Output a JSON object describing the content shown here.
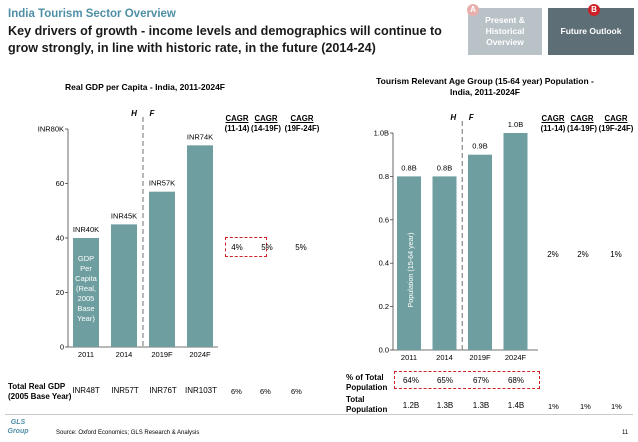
{
  "header": {
    "kicker": "India Tourism Sector Overview",
    "headline": "Key drivers of growth - income levels and demographics will continue to grow strongly, in line with historic rate, in the future (2014-24)"
  },
  "tabs": [
    {
      "marker": "A",
      "label": "Present & Historical Overview",
      "active": false
    },
    {
      "marker": "B",
      "label": "Future Outlook",
      "active": true
    }
  ],
  "colors": {
    "accent": "#4f8fa6",
    "bar": "#6e9e9f",
    "highlight": "#cc2127",
    "tab_active": "#5e6e77",
    "tab_inactive": "#b9c2c7"
  },
  "left_chart": {
    "cagr_headers": [
      {
        "top": "CAGR",
        "bottom": "(11-14)"
      },
      {
        "top": "CAGR",
        "bottom": "(14-19F)"
      },
      {
        "top": "CAGR",
        "bottom": "(19F-24F)"
      }
    ],
    "cagr_values": [
      "4%",
      "5%",
      "5%"
    ],
    "total_label": "Total Real GDP (2005 Base Year)",
    "totals": [
      "INR48T",
      "INR57T",
      "INR76T",
      "INR103T"
    ],
    "total_cagr": [
      "6%",
      "6%",
      "6%"
    ]
  },
  "right_chart": {
    "cagr_headers": [
      {
        "top": "CAGR",
        "bottom": "(11-14)"
      },
      {
        "top": "CAGR",
        "bottom": "(14-19F)"
      },
      {
        "top": "CAGR",
        "bottom": "(19F-24F)"
      }
    ],
    "cagr_values": [
      "2%",
      "2%",
      "1%"
    ],
    "share_label": "% of Total Population",
    "shares": [
      "64%",
      "65%",
      "67%",
      "68%"
    ],
    "total_label": "Total Population",
    "totals": [
      "1.2B",
      "1.3B",
      "1.3B",
      "1.4B"
    ],
    "total_cagr": [
      "1%",
      "1%",
      "1%"
    ]
  },
  "footer": {
    "logo": "GLS Group",
    "source": "Source: Oxford Economics; GLS Research & Analysis",
    "page": "11"
  },
  "chart_data": [
    {
      "type": "bar",
      "title": "Real GDP per Capita - India, 2011-2024F",
      "categories": [
        "2011",
        "2014",
        "2019F",
        "2024F"
      ],
      "values": [
        40,
        45,
        57,
        74
      ],
      "data_labels": [
        "INR40K",
        "INR45K",
        "INR57K",
        "INR74K"
      ],
      "ylabel_inside_bar": "GDP Per Capita (Real, 2005 Base Year)",
      "ylim": [
        0,
        80
      ],
      "yticks": [
        0,
        20,
        40,
        60,
        80
      ],
      "ytick_labels": [
        "0",
        "20",
        "40",
        "60",
        "INR80K"
      ],
      "divider": {
        "left": "H",
        "right": "F",
        "between": [
          "2014",
          "2019F"
        ]
      },
      "grid": false
    },
    {
      "type": "bar",
      "title": "Tourism Relevant Age Group (15-64 year) Population - India, 2011-2024F",
      "categories": [
        "2011",
        "2014",
        "2019F",
        "2024F"
      ],
      "values": [
        0.8,
        0.8,
        0.9,
        1.0
      ],
      "data_labels": [
        "0.8B",
        "0.8B",
        "0.9B",
        "1.0B"
      ],
      "ylabel_inside_bar": "Population (15-64 year)",
      "ylim": [
        0,
        1.0
      ],
      "yticks": [
        0,
        0.2,
        0.4,
        0.6,
        0.8,
        1.0
      ],
      "ytick_labels": [
        "0.0",
        "0.2",
        "0.4",
        "0.6",
        "0.8",
        "1.0B"
      ],
      "divider": {
        "left": "H",
        "right": "F",
        "between": [
          "2014",
          "2019F"
        ]
      },
      "grid": false
    }
  ]
}
